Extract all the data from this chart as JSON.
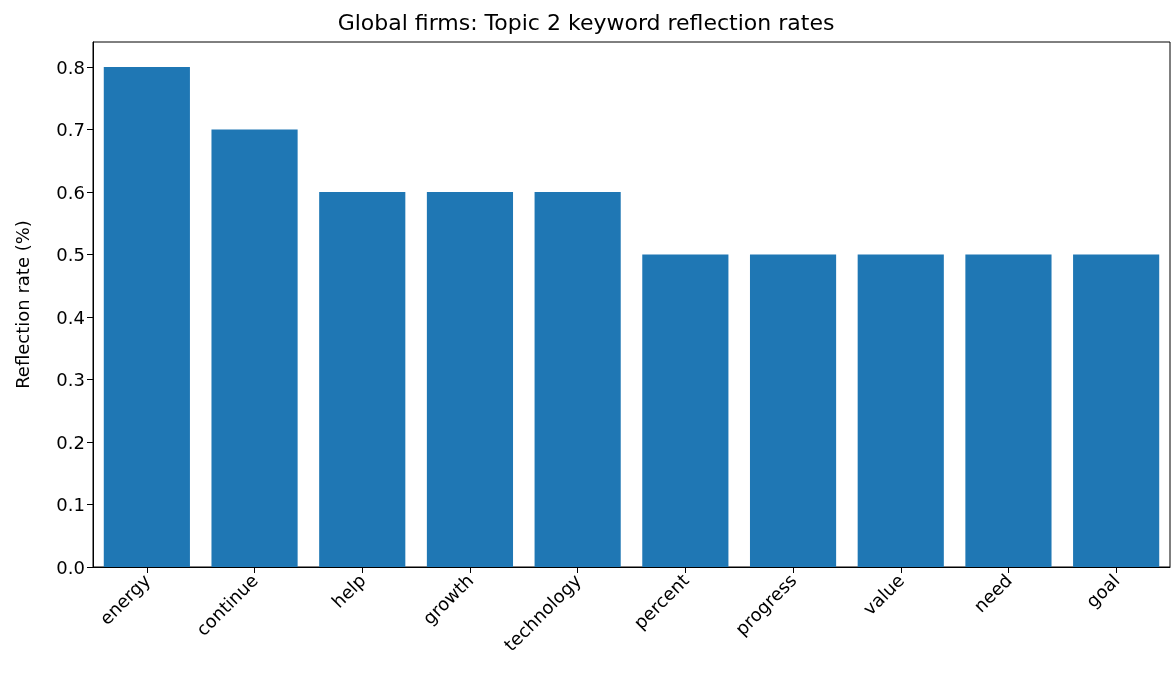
{
  "chart_data": {
    "type": "bar",
    "title": "Global firms: Topic 2 keyword reflection rates",
    "ylabel": "Reflection rate (%)",
    "categories": [
      "energy",
      "continue",
      "help",
      "growth",
      "technology",
      "percent",
      "progress",
      "value",
      "need",
      "goal"
    ],
    "values": [
      0.8,
      0.7,
      0.6,
      0.6,
      0.6,
      0.5,
      0.5,
      0.5,
      0.5,
      0.5
    ],
    "color": "#1f77b4",
    "ylim": [
      0,
      0.84
    ],
    "yticks": [
      {
        "value": 0,
        "label": "0.0"
      },
      0.1,
      0.2,
      0.3,
      0.4,
      0.5,
      0.6,
      0.7,
      0.8
    ],
    "grid": false
  }
}
